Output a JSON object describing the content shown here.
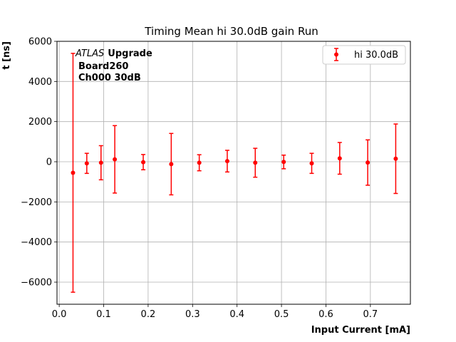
{
  "chart_data": {
    "type": "scatter",
    "title": "Timing Mean hi 30.0dB gain Run",
    "xlabel": "Input Current [mA]",
    "ylabel": "t [ns]",
    "xlim": [
      -0.005,
      0.79
    ],
    "ylim": [
      -7100,
      6000
    ],
    "xticks": [
      "0.0",
      "0.1",
      "0.2",
      "0.3",
      "0.4",
      "0.5",
      "0.6",
      "0.7"
    ],
    "yticks": [
      "−6000",
      "−4000",
      "−2000",
      "0",
      "2000",
      "4000",
      "6000"
    ],
    "grid": true,
    "legend_position": "top-right",
    "annotation": {
      "line1_italic": "ATLAS",
      "line1_bold": "Upgrade",
      "line2": "Board260",
      "line3": "Ch000 30dB"
    },
    "series": [
      {
        "name": "hi 30.0dB",
        "color": "#ff0000",
        "marker": "circle",
        "x": [
          0.031,
          0.062,
          0.094,
          0.125,
          0.189,
          0.252,
          0.315,
          0.378,
          0.441,
          0.505,
          0.568,
          0.631,
          0.694,
          0.757
        ],
        "y": [
          -550,
          -80,
          -50,
          120,
          -20,
          -120,
          -50,
          30,
          -50,
          -10,
          -80,
          170,
          -40,
          150
        ],
        "yerr": [
          5950,
          500,
          850,
          1680,
          380,
          1530,
          400,
          540,
          720,
          340,
          500,
          790,
          1130,
          1730
        ]
      }
    ]
  }
}
